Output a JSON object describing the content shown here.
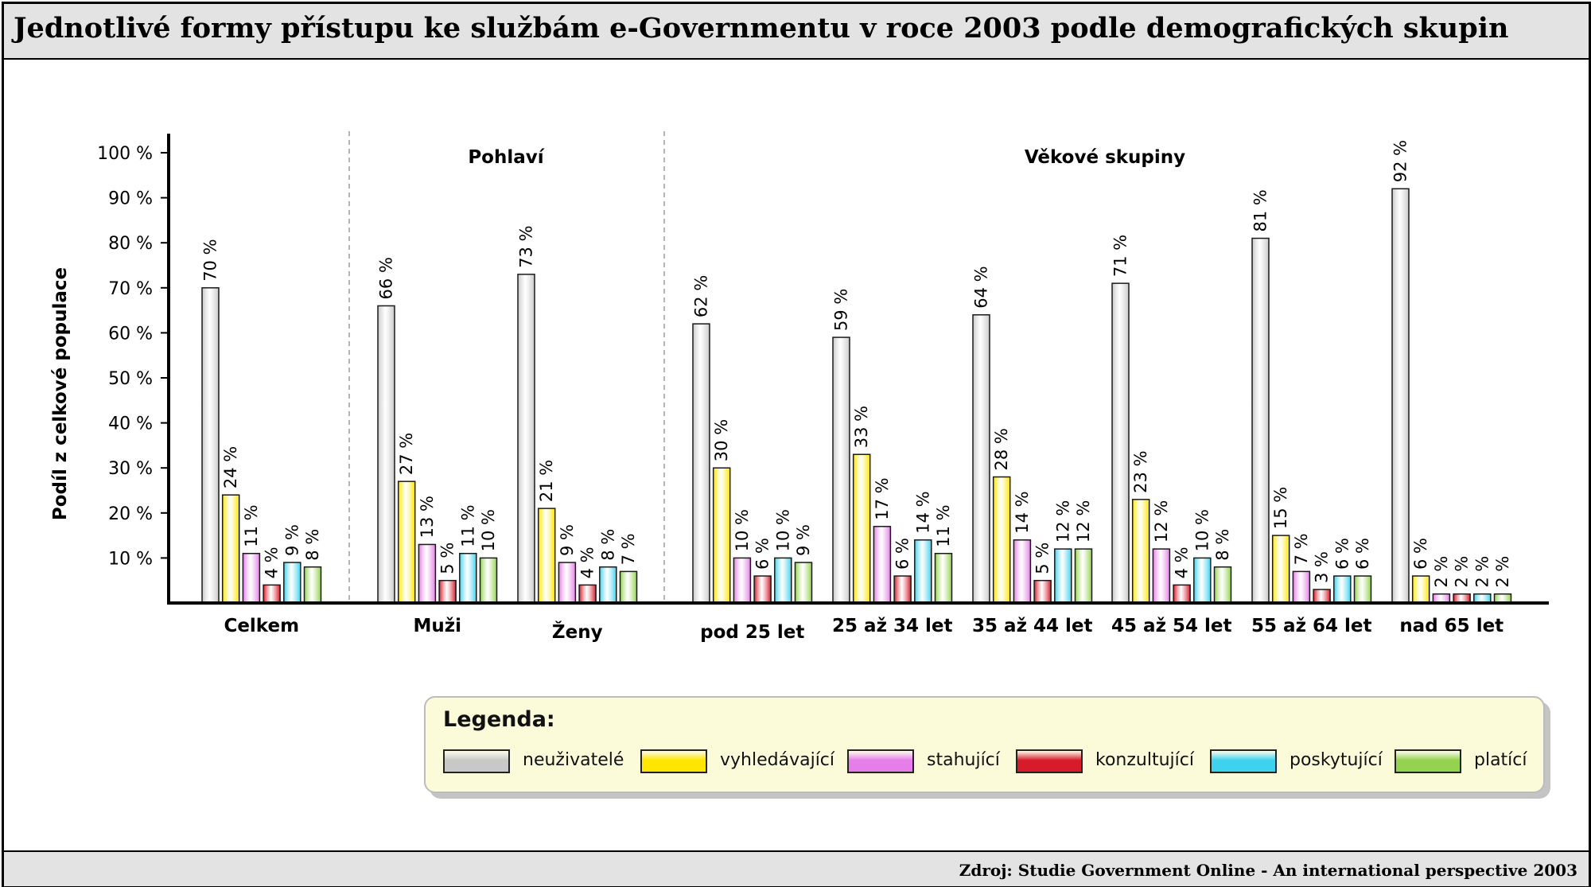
{
  "title": "Jednotlivé formy přístupu ke službám e-Governmentu v roce 2003 podle demografických skupin",
  "source": "Zdroj: Studie Government Online - An international perspective 2003",
  "legend": {
    "title": "Legenda:",
    "items": [
      {
        "label": "neuživatelé",
        "color": "#c8c8c8"
      },
      {
        "label": "vyhledávající",
        "color": "#ffe600"
      },
      {
        "label": "stahující",
        "color": "#e57ee8"
      },
      {
        "label": "konzultující",
        "color": "#d81b2a"
      },
      {
        "label": "poskytující",
        "color": "#3fd2ee"
      },
      {
        "label": "platící",
        "color": "#95d24f"
      }
    ]
  },
  "chart_data": {
    "type": "bar",
    "ylabel": "Podíl z celkové populace",
    "ylim": [
      0,
      100
    ],
    "yticks": [
      10,
      20,
      30,
      40,
      50,
      60,
      70,
      80,
      90,
      100
    ],
    "ytick_labels": [
      "10 %",
      "20 %",
      "30 %",
      "40 %",
      "50 %",
      "60 %",
      "70 %",
      "80 %",
      "90 %",
      "100 %"
    ],
    "group_headers": [
      "Pohlaví",
      "Věkové skupiny"
    ],
    "categories": [
      "Celkem",
      "Muži",
      "Ženy",
      "pod 25 let",
      "25 až 34 let",
      "35 až 44 let",
      "45 až 54 let",
      "55 až 64 let",
      "nad 65 let"
    ],
    "value_suffix": " %",
    "series": [
      {
        "name": "neuživatelé",
        "values": [
          70,
          66,
          73,
          62,
          59,
          64,
          71,
          81,
          92
        ]
      },
      {
        "name": "vyhledávající",
        "values": [
          24,
          27,
          21,
          30,
          33,
          28,
          23,
          15,
          6
        ]
      },
      {
        "name": "stahující",
        "values": [
          11,
          13,
          9,
          10,
          17,
          14,
          12,
          7,
          2
        ]
      },
      {
        "name": "konzultující",
        "values": [
          4,
          5,
          4,
          6,
          6,
          5,
          4,
          3,
          2
        ]
      },
      {
        "name": "poskytující",
        "values": [
          9,
          11,
          8,
          10,
          14,
          12,
          10,
          6,
          2
        ]
      },
      {
        "name": "platící",
        "values": [
          8,
          10,
          7,
          9,
          11,
          12,
          8,
          6,
          2
        ]
      }
    ]
  }
}
